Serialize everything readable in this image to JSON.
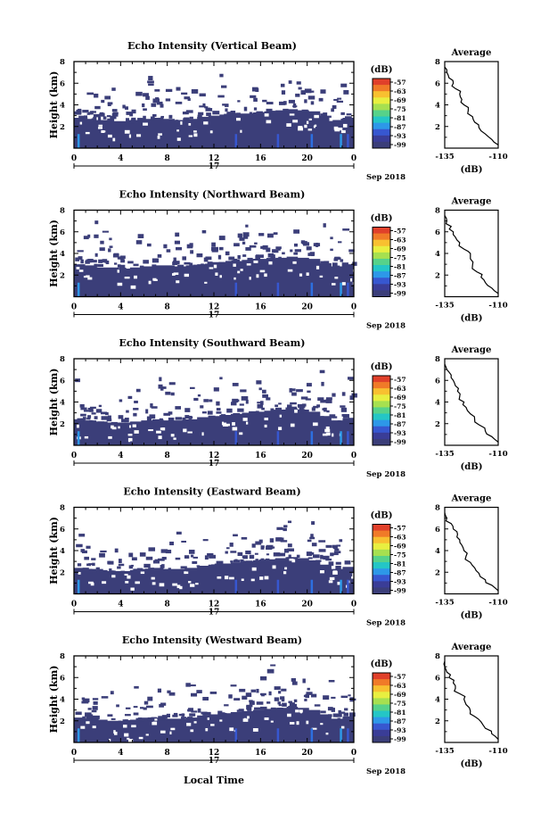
{
  "figure": {
    "xlabel": "Local Time",
    "date_label": "Sep 2018",
    "day_label": "17",
    "colorbar_unit": "(dB)",
    "colorbar_ticks": [
      "-57",
      "-63",
      "-69",
      "-75",
      "-81",
      "-87",
      "-93",
      "-99"
    ],
    "colorbar_colors": [
      "#e0402a",
      "#f07a28",
      "#f8c030",
      "#e8ef40",
      "#a6e050",
      "#56d28a",
      "#24c6c6",
      "#2d98e8",
      "#3757d0",
      "#3a3d97",
      "#3b3e79"
    ],
    "main_bg_color": "#3b3e79"
  },
  "chart_data": [
    {
      "type": "heatmap",
      "title": "Echo Intensity (Vertical Beam)",
      "ylabel": "Height (km)",
      "xticks": [
        "0",
        "4",
        "8",
        "12",
        "16",
        "20",
        "0"
      ],
      "yticks": [
        "2",
        "4",
        "6",
        "8"
      ],
      "xlim": [
        0,
        24
      ],
      "ylim": [
        0,
        8
      ],
      "echo_top_km": [
        2.8,
        2.7,
        2.6,
        2.5,
        2.5,
        2.6,
        2.7,
        2.8,
        2.7,
        2.6,
        2.7,
        2.9,
        3.0,
        3.1,
        3.2,
        3.2,
        3.3,
        3.4,
        3.5,
        3.6,
        3.5,
        3.4,
        3.0,
        2.6,
        2.8
      ],
      "profile": {
        "title": "Average",
        "xlabel": "(dB)",
        "xticks": [
          "-135",
          "-110"
        ],
        "yticks": [
          "2",
          "4",
          "6",
          "8"
        ],
        "xlim": [
          -135,
          -110
        ],
        "ylim": [
          0,
          8
        ],
        "x": [
          -110,
          -113,
          -116,
          -119,
          -121,
          -122,
          -124,
          -126,
          -127,
          -128,
          -130,
          -131,
          -133,
          -134,
          -135
        ],
        "y": [
          0.3,
          0.8,
          1.3,
          1.9,
          2.4,
          2.9,
          3.5,
          4.0,
          4.5,
          5.0,
          5.5,
          6.0,
          6.5,
          7.0,
          7.5
        ]
      }
    },
    {
      "type": "heatmap",
      "title": "Echo Intensity (Northward Beam)",
      "ylabel": "Height (km)",
      "xticks": [
        "0",
        "4",
        "8",
        "12",
        "16",
        "20",
        "0"
      ],
      "yticks": [
        "2",
        "4",
        "6",
        "8"
      ],
      "xlim": [
        0,
        24
      ],
      "ylim": [
        0,
        8
      ],
      "echo_top_km": [
        3.0,
        2.9,
        2.7,
        2.7,
        2.6,
        2.7,
        2.8,
        2.9,
        2.9,
        2.8,
        2.9,
        3.0,
        3.2,
        3.2,
        3.3,
        3.4,
        3.5,
        3.5,
        3.6,
        3.7,
        3.6,
        3.5,
        3.1,
        2.8,
        3.0
      ],
      "profile": {
        "title": "Average",
        "xlabel": "(dB)",
        "xticks": [
          "-135",
          "-110"
        ],
        "yticks": [
          "2",
          "4",
          "6",
          "8"
        ],
        "xlim": [
          -135,
          -110
        ],
        "ylim": [
          0,
          8
        ],
        "x": [
          -110,
          -113,
          -116,
          -118,
          -120,
          -122,
          -123,
          -123,
          -126,
          -128,
          -130,
          -131,
          -132,
          -134,
          -135
        ],
        "y": [
          0.3,
          0.8,
          1.3,
          1.8,
          2.3,
          2.9,
          3.5,
          4.0,
          4.4,
          5.0,
          5.5,
          6.0,
          6.5,
          7.0,
          7.5
        ]
      }
    },
    {
      "type": "heatmap",
      "title": "Echo Intensity (Southward Beam)",
      "ylabel": "Height (km)",
      "xticks": [
        "0",
        "4",
        "8",
        "12",
        "16",
        "20",
        "0"
      ],
      "yticks": [
        "2",
        "4",
        "6",
        "8"
      ],
      "xlim": [
        0,
        24
      ],
      "ylim": [
        0,
        8
      ],
      "echo_top_km": [
        2.4,
        2.3,
        2.2,
        2.1,
        2.1,
        2.2,
        2.3,
        2.4,
        2.3,
        2.3,
        2.4,
        2.6,
        2.7,
        2.8,
        2.9,
        3.0,
        3.1,
        3.2,
        3.3,
        3.4,
        3.3,
        3.1,
        2.7,
        2.3,
        2.5
      ],
      "profile": {
        "title": "Average",
        "xlabel": "(dB)",
        "xticks": [
          "-135",
          "-110"
        ],
        "yticks": [
          "2",
          "4",
          "6",
          "8"
        ],
        "xlim": [
          -135,
          -110
        ],
        "ylim": [
          0,
          8
        ],
        "x": [
          -110,
          -113,
          -116,
          -119,
          -121,
          -123,
          -125,
          -126,
          -128,
          -129,
          -130,
          -131,
          -132,
          -134,
          -135
        ],
        "y": [
          0.3,
          0.8,
          1.3,
          1.9,
          2.4,
          2.9,
          3.5,
          4.0,
          4.5,
          5.0,
          5.5,
          6.0,
          6.5,
          7.0,
          7.5
        ]
      }
    },
    {
      "type": "heatmap",
      "title": "Echo Intensity (Eastward Beam)",
      "ylabel": "Height (km)",
      "xticks": [
        "0",
        "4",
        "8",
        "12",
        "16",
        "20",
        "0"
      ],
      "yticks": [
        "2",
        "4",
        "6",
        "8"
      ],
      "xlim": [
        0,
        24
      ],
      "ylim": [
        0,
        8
      ],
      "echo_top_km": [
        2.4,
        2.3,
        2.2,
        2.1,
        2.1,
        2.2,
        2.3,
        2.4,
        2.3,
        2.3,
        2.4,
        2.6,
        2.7,
        2.8,
        2.9,
        3.0,
        3.1,
        3.2,
        3.3,
        3.4,
        3.3,
        3.1,
        2.7,
        2.3,
        2.5
      ],
      "profile": {
        "title": "Average",
        "xlabel": "(dB)",
        "xticks": [
          "-135",
          "-110"
        ],
        "yticks": [
          "2",
          "4",
          "6",
          "8"
        ],
        "xlim": [
          -135,
          -110
        ],
        "ylim": [
          0,
          8
        ],
        "x": [
          -110,
          -113,
          -116,
          -119,
          -121,
          -123,
          -125,
          -126,
          -127,
          -128,
          -129,
          -131,
          -132,
          -134,
          -135
        ],
        "y": [
          0.3,
          0.8,
          1.3,
          1.9,
          2.4,
          2.9,
          3.5,
          4.0,
          4.5,
          5.0,
          5.5,
          6.0,
          6.5,
          7.0,
          7.5
        ]
      }
    },
    {
      "type": "heatmap",
      "title": "Echo Intensity (Westward Beam)",
      "ylabel": "Height (km)",
      "xticks": [
        "0",
        "4",
        "8",
        "12",
        "16",
        "20",
        "0"
      ],
      "yticks": [
        "2",
        "4",
        "6",
        "8"
      ],
      "xlim": [
        0,
        24
      ],
      "ylim": [
        0,
        8
      ],
      "echo_top_km": [
        2.3,
        2.2,
        2.1,
        2.0,
        2.0,
        2.1,
        2.2,
        2.3,
        2.2,
        2.2,
        2.3,
        2.5,
        2.6,
        2.7,
        2.8,
        2.9,
        3.0,
        3.1,
        3.2,
        3.3,
        3.2,
        3.0,
        2.6,
        2.2,
        2.4
      ],
      "profile": {
        "title": "Average",
        "xlabel": "(dB)",
        "xticks": [
          "-135",
          "-110"
        ],
        "yticks": [
          "2",
          "4",
          "6",
          "8"
        ],
        "xlim": [
          -135,
          -110
        ],
        "ylim": [
          0,
          8
        ],
        "x": [
          -110,
          -113,
          -116,
          -118,
          -121,
          -123,
          -125,
          -126,
          -128,
          -130,
          -131,
          -133,
          -134,
          -135,
          -135
        ],
        "y": [
          0.3,
          0.8,
          1.3,
          1.9,
          2.4,
          2.9,
          3.5,
          4.0,
          4.5,
          5.0,
          5.5,
          6.0,
          6.5,
          7.0,
          7.5
        ]
      }
    }
  ]
}
